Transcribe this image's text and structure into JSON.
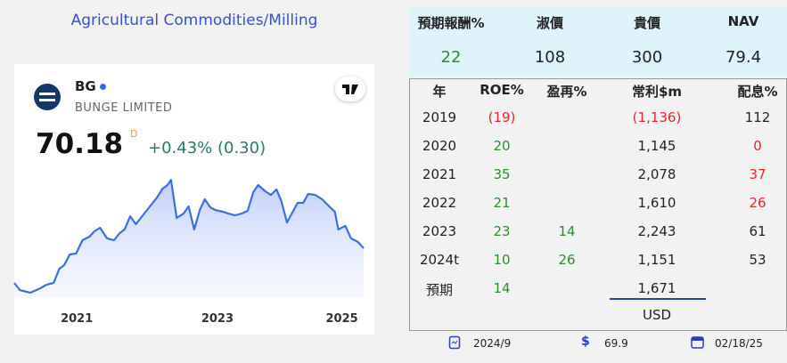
{
  "title": "Agricultural Commodities/Milling",
  "widget": {
    "symbol": "BG",
    "name": "BUNGE LIMITED",
    "price": "70.18",
    "price_flag": "D",
    "change": "+0.43% (0.30)"
  },
  "chart_data": {
    "type": "area",
    "color": "#3b6fe0",
    "x": [
      2020.11,
      2020.19,
      2020.34,
      2020.48,
      2020.57,
      2020.67,
      2020.75,
      2020.82,
      2020.9,
      2020.99,
      2021.08,
      2021.18,
      2021.25,
      2021.33,
      2021.43,
      2021.53,
      2021.61,
      2021.68,
      2021.76,
      2021.84,
      2021.94,
      2022.04,
      2022.14,
      2022.22,
      2022.29,
      2022.34,
      2022.42,
      2022.52,
      2022.59,
      2022.67,
      2022.75,
      2022.82,
      2022.9,
      2022.97,
      2023.08,
      2023.15,
      2023.25,
      2023.35,
      2023.43,
      2023.51,
      2023.58,
      2023.68,
      2023.76,
      2023.84,
      2023.91,
      2023.99,
      2024.06,
      2024.14,
      2024.22,
      2024.29,
      2024.39,
      2024.49,
      2024.59,
      2024.67,
      2024.72,
      2024.82,
      2024.9,
      2025.0,
      2025.08
    ],
    "values": [
      47.9,
      43.3,
      41.6,
      44.5,
      46.8,
      47.9,
      57.0,
      59.3,
      66.2,
      66.8,
      75.3,
      77.6,
      81.0,
      83.3,
      76.5,
      75.3,
      79.9,
      82.2,
      90.7,
      85.6,
      91.3,
      97.0,
      102.7,
      108.4,
      110.7,
      114.1,
      89.6,
      92.5,
      97.0,
      82.2,
      94.7,
      101.6,
      96.4,
      94.7,
      93.6,
      92.5,
      91.3,
      92.5,
      94.2,
      106.2,
      110.7,
      106.7,
      104.4,
      107.9,
      100.4,
      86.7,
      92.5,
      99.3,
      99.3,
      105.0,
      104.4,
      101.6,
      97.0,
      93.6,
      82.2,
      84.5,
      76.5,
      74.2,
      70.2
    ],
    "xlim": [
      2020.11,
      2025.08
    ],
    "ylim": [
      38.2,
      121
    ],
    "xticks": [
      2021,
      2023,
      2025
    ]
  },
  "summary": {
    "columns": [
      "預期報酬%",
      "淑價",
      "貴價",
      "NAV"
    ],
    "values": [
      "22",
      "108",
      "300",
      "79.4"
    ]
  },
  "table": {
    "columns": [
      "年",
      "ROE%",
      "盈再%",
      "常利$m",
      "配息%"
    ],
    "rows": [
      [
        "2019",
        "(19)",
        "",
        "(1,136)",
        "112"
      ],
      [
        "2020",
        "20",
        "",
        "1,145",
        "0"
      ],
      [
        "2021",
        "35",
        "",
        "2,078",
        "37"
      ],
      [
        "2022",
        "21",
        "",
        "1,610",
        "26"
      ],
      [
        "2023",
        "23",
        "14",
        "2,243",
        "61"
      ],
      [
        "2024t",
        "10",
        "26",
        "1,151",
        "53"
      ],
      [
        "預期",
        "14",
        "",
        "1,671",
        ""
      ]
    ],
    "unit": "USD"
  },
  "footer": {
    "period": "2024/9",
    "currency": "$",
    "price": "69.9",
    "date": "02/18/25"
  }
}
